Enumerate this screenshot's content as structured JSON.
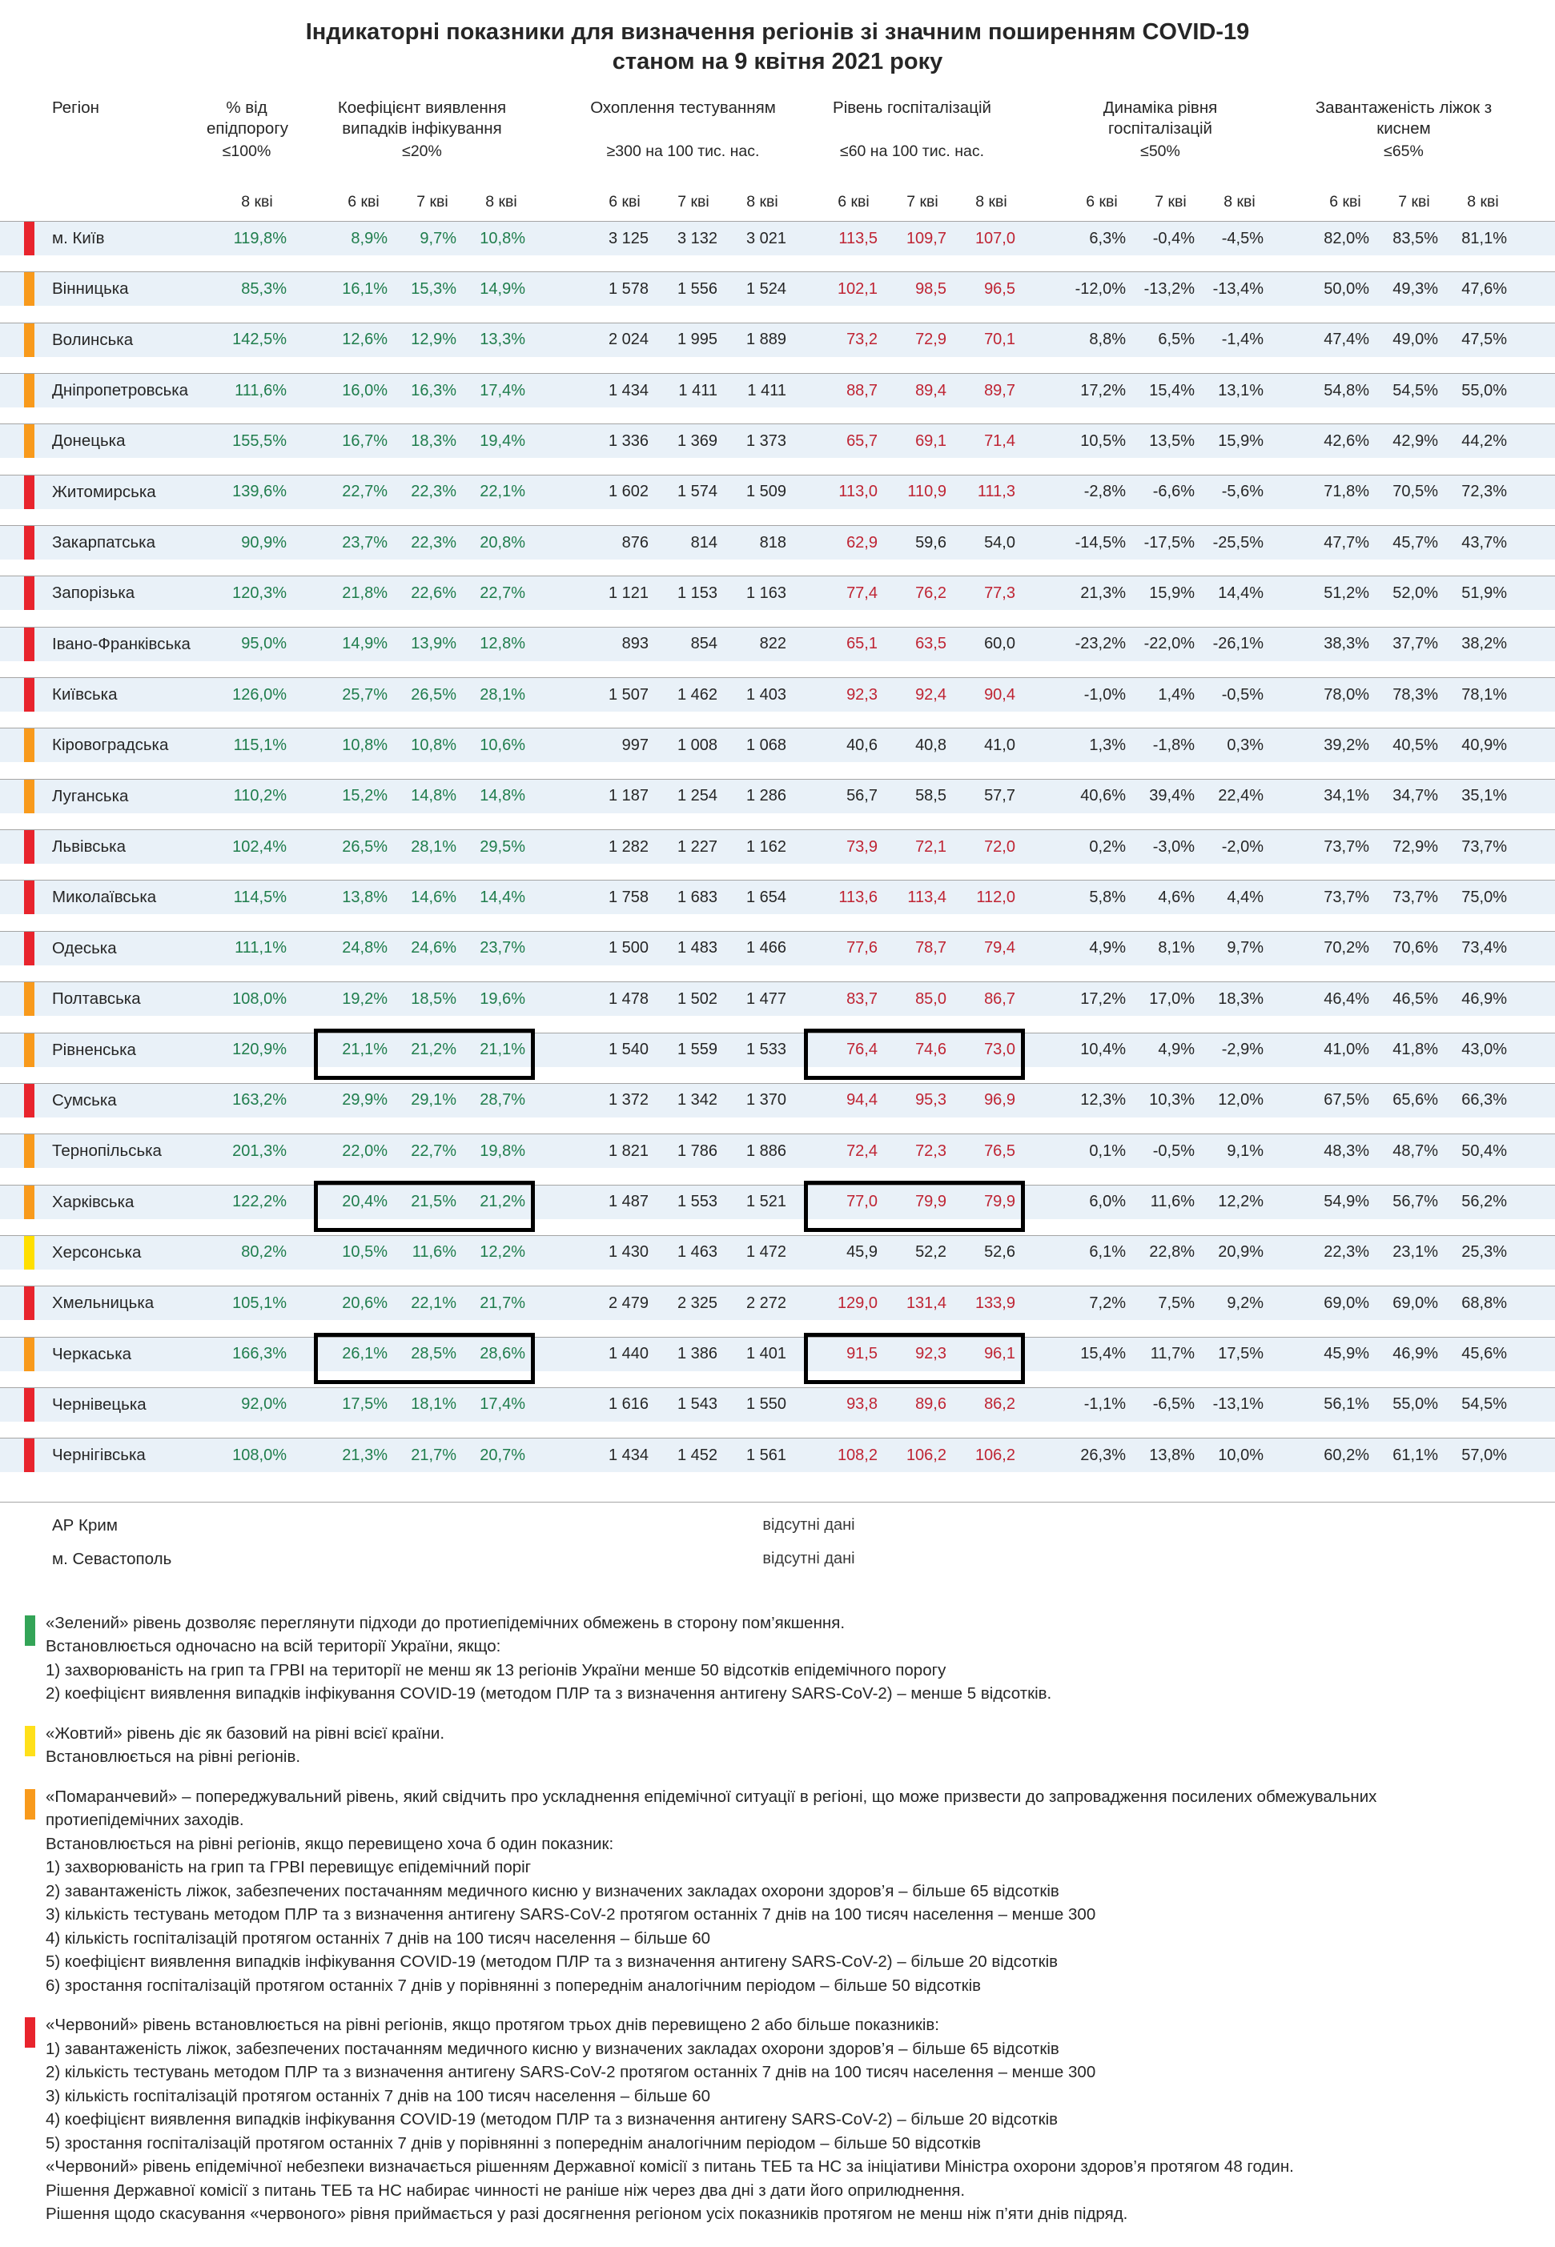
{
  "title": {
    "line1": "Індикаторні показники для визначення регіонів зі значним поширенням COVID-19",
    "line2": "станом на 9 квітня 2021 року"
  },
  "columns": {
    "region": "Регіон",
    "groups": [
      {
        "key": "epid",
        "label": "% від епідпорогу",
        "threshold": "≤100%",
        "dates": [
          "8 кві"
        ]
      },
      {
        "key": "coef",
        "label": "Коефіцієнт виявлення випадків інфікування",
        "threshold": "≤20%",
        "dates": [
          "6 кві",
          "7 кві",
          "8 кві"
        ]
      },
      {
        "key": "test",
        "label": "Охоплення тестуванням",
        "threshold": "≥300 на 100 тис. нас.",
        "dates": [
          "6 кві",
          "7 кві",
          "8 кві"
        ]
      },
      {
        "key": "hosp",
        "label": "Рівень госпіталізацій",
        "threshold": "≤60 на 100 тис. нас.",
        "dates": [
          "6 кві",
          "7 кві",
          "8 кві"
        ]
      },
      {
        "key": "dyn",
        "label": "Динаміка рівня госпіталізацій",
        "threshold": "≤50%",
        "dates": [
          "6 кві",
          "7 кві",
          "8 кві"
        ]
      },
      {
        "key": "beds",
        "label": "Завантаженість ліжок з киснем",
        "threshold": "≤65%",
        "dates": [
          "6 кві",
          "7 кві",
          "8 кві"
        ]
      }
    ]
  },
  "rows": [
    {
      "level": "red",
      "region": "м. Київ",
      "epid": "119,8%",
      "coef": [
        "8,9%",
        "9,7%",
        "10,8%"
      ],
      "test": [
        "3 125",
        "3 132",
        "3 021"
      ],
      "hosp": [
        "113,5",
        "109,7",
        "107,0"
      ],
      "dyn": [
        "6,3%",
        "-0,4%",
        "-4,5%"
      ],
      "beds": [
        "82,0%",
        "83,5%",
        "81,1%"
      ],
      "boxed": false
    },
    {
      "level": "orange",
      "region": "Вінницька",
      "epid": "85,3%",
      "coef": [
        "16,1%",
        "15,3%",
        "14,9%"
      ],
      "test": [
        "1 578",
        "1 556",
        "1 524"
      ],
      "hosp": [
        "102,1",
        "98,5",
        "96,5"
      ],
      "dyn": [
        "-12,0%",
        "-13,2%",
        "-13,4%"
      ],
      "beds": [
        "50,0%",
        "49,3%",
        "47,6%"
      ],
      "boxed": false
    },
    {
      "level": "orange",
      "region": "Волинська",
      "epid": "142,5%",
      "coef": [
        "12,6%",
        "12,9%",
        "13,3%"
      ],
      "test": [
        "2 024",
        "1 995",
        "1 889"
      ],
      "hosp": [
        "73,2",
        "72,9",
        "70,1"
      ],
      "dyn": [
        "8,8%",
        "6,5%",
        "-1,4%"
      ],
      "beds": [
        "47,4%",
        "49,0%",
        "47,5%"
      ],
      "boxed": false
    },
    {
      "level": "orange",
      "region": "Дніпропетровська",
      "epid": "111,6%",
      "coef": [
        "16,0%",
        "16,3%",
        "17,4%"
      ],
      "test": [
        "1 434",
        "1 411",
        "1 411"
      ],
      "hosp": [
        "88,7",
        "89,4",
        "89,7"
      ],
      "dyn": [
        "17,2%",
        "15,4%",
        "13,1%"
      ],
      "beds": [
        "54,8%",
        "54,5%",
        "55,0%"
      ],
      "boxed": false
    },
    {
      "level": "orange",
      "region": "Донецька",
      "epid": "155,5%",
      "coef": [
        "16,7%",
        "18,3%",
        "19,4%"
      ],
      "test": [
        "1 336",
        "1 369",
        "1 373"
      ],
      "hosp": [
        "65,7",
        "69,1",
        "71,4"
      ],
      "dyn": [
        "10,5%",
        "13,5%",
        "15,9%"
      ],
      "beds": [
        "42,6%",
        "42,9%",
        "44,2%"
      ],
      "boxed": false
    },
    {
      "level": "red",
      "region": "Житомирська",
      "epid": "139,6%",
      "coef": [
        "22,7%",
        "22,3%",
        "22,1%"
      ],
      "test": [
        "1 602",
        "1 574",
        "1 509"
      ],
      "hosp": [
        "113,0",
        "110,9",
        "111,3"
      ],
      "dyn": [
        "-2,8%",
        "-6,6%",
        "-5,6%"
      ],
      "beds": [
        "71,8%",
        "70,5%",
        "72,3%"
      ],
      "boxed": false
    },
    {
      "level": "red",
      "region": "Закарпатська",
      "epid": "90,9%",
      "coef": [
        "23,7%",
        "22,3%",
        "20,8%"
      ],
      "test": [
        "876",
        "814",
        "818"
      ],
      "hosp": [
        "62,9",
        "59,6",
        "54,0"
      ],
      "dyn": [
        "-14,5%",
        "-17,5%",
        "-25,5%"
      ],
      "beds": [
        "47,7%",
        "45,7%",
        "43,7%"
      ],
      "boxed": false
    },
    {
      "level": "red",
      "region": "Запорізька",
      "epid": "120,3%",
      "coef": [
        "21,8%",
        "22,6%",
        "22,7%"
      ],
      "test": [
        "1 121",
        "1 153",
        "1 163"
      ],
      "hosp": [
        "77,4",
        "76,2",
        "77,3"
      ],
      "dyn": [
        "21,3%",
        "15,9%",
        "14,4%"
      ],
      "beds": [
        "51,2%",
        "52,0%",
        "51,9%"
      ],
      "boxed": false
    },
    {
      "level": "red",
      "region": "Івано-Франківська",
      "epid": "95,0%",
      "coef": [
        "14,9%",
        "13,9%",
        "12,8%"
      ],
      "test": [
        "893",
        "854",
        "822"
      ],
      "hosp": [
        "65,1",
        "63,5",
        "60,0"
      ],
      "dyn": [
        "-23,2%",
        "-22,0%",
        "-26,1%"
      ],
      "beds": [
        "38,3%",
        "37,7%",
        "38,2%"
      ],
      "boxed": false
    },
    {
      "level": "red",
      "region": "Київська",
      "epid": "126,0%",
      "coef": [
        "25,7%",
        "26,5%",
        "28,1%"
      ],
      "test": [
        "1 507",
        "1 462",
        "1 403"
      ],
      "hosp": [
        "92,3",
        "92,4",
        "90,4"
      ],
      "dyn": [
        "-1,0%",
        "1,4%",
        "-0,5%"
      ],
      "beds": [
        "78,0%",
        "78,3%",
        "78,1%"
      ],
      "boxed": false
    },
    {
      "level": "orange",
      "region": "Кіровоградська",
      "epid": "115,1%",
      "coef": [
        "10,8%",
        "10,8%",
        "10,6%"
      ],
      "test": [
        "997",
        "1 008",
        "1 068"
      ],
      "hosp": [
        "40,6",
        "40,8",
        "41,0"
      ],
      "dyn": [
        "1,3%",
        "-1,8%",
        "0,3%"
      ],
      "beds": [
        "39,2%",
        "40,5%",
        "40,9%"
      ],
      "boxed": false
    },
    {
      "level": "orange",
      "region": "Луганська",
      "epid": "110,2%",
      "coef": [
        "15,2%",
        "14,8%",
        "14,8%"
      ],
      "test": [
        "1 187",
        "1 254",
        "1 286"
      ],
      "hosp": [
        "56,7",
        "58,5",
        "57,7"
      ],
      "dyn": [
        "40,6%",
        "39,4%",
        "22,4%"
      ],
      "beds": [
        "34,1%",
        "34,7%",
        "35,1%"
      ],
      "boxed": false
    },
    {
      "level": "red",
      "region": "Львівська",
      "epid": "102,4%",
      "coef": [
        "26,5%",
        "28,1%",
        "29,5%"
      ],
      "test": [
        "1 282",
        "1 227",
        "1 162"
      ],
      "hosp": [
        "73,9",
        "72,1",
        "72,0"
      ],
      "dyn": [
        "0,2%",
        "-3,0%",
        "-2,0%"
      ],
      "beds": [
        "73,7%",
        "72,9%",
        "73,7%"
      ],
      "boxed": false
    },
    {
      "level": "red",
      "region": "Миколаївська",
      "epid": "114,5%",
      "coef": [
        "13,8%",
        "14,6%",
        "14,4%"
      ],
      "test": [
        "1 758",
        "1 683",
        "1 654"
      ],
      "hosp": [
        "113,6",
        "113,4",
        "112,0"
      ],
      "dyn": [
        "5,8%",
        "4,6%",
        "4,4%"
      ],
      "beds": [
        "73,7%",
        "73,7%",
        "75,0%"
      ],
      "boxed": false
    },
    {
      "level": "red",
      "region": "Одеська",
      "epid": "111,1%",
      "coef": [
        "24,8%",
        "24,6%",
        "23,7%"
      ],
      "test": [
        "1 500",
        "1 483",
        "1 466"
      ],
      "hosp": [
        "77,6",
        "78,7",
        "79,4"
      ],
      "dyn": [
        "4,9%",
        "8,1%",
        "9,7%"
      ],
      "beds": [
        "70,2%",
        "70,6%",
        "73,4%"
      ],
      "boxed": false
    },
    {
      "level": "orange",
      "region": "Полтавська",
      "epid": "108,0%",
      "coef": [
        "19,2%",
        "18,5%",
        "19,6%"
      ],
      "test": [
        "1 478",
        "1 502",
        "1 477"
      ],
      "hosp": [
        "83,7",
        "85,0",
        "86,7"
      ],
      "dyn": [
        "17,2%",
        "17,0%",
        "18,3%"
      ],
      "beds": [
        "46,4%",
        "46,5%",
        "46,9%"
      ],
      "boxed": false
    },
    {
      "level": "orange",
      "region": "Рівненська",
      "epid": "120,9%",
      "coef": [
        "21,1%",
        "21,2%",
        "21,1%"
      ],
      "test": [
        "1 540",
        "1 559",
        "1 533"
      ],
      "hosp": [
        "76,4",
        "74,6",
        "73,0"
      ],
      "dyn": [
        "10,4%",
        "4,9%",
        "-2,9%"
      ],
      "beds": [
        "41,0%",
        "41,8%",
        "43,0%"
      ],
      "boxed": true
    },
    {
      "level": "red",
      "region": "Сумська",
      "epid": "163,2%",
      "coef": [
        "29,9%",
        "29,1%",
        "28,7%"
      ],
      "test": [
        "1 372",
        "1 342",
        "1 370"
      ],
      "hosp": [
        "94,4",
        "95,3",
        "96,9"
      ],
      "dyn": [
        "12,3%",
        "10,3%",
        "12,0%"
      ],
      "beds": [
        "67,5%",
        "65,6%",
        "66,3%"
      ],
      "boxed": false
    },
    {
      "level": "orange",
      "region": "Тернопільська",
      "epid": "201,3%",
      "coef": [
        "22,0%",
        "22,7%",
        "19,8%"
      ],
      "test": [
        "1 821",
        "1 786",
        "1 886"
      ],
      "hosp": [
        "72,4",
        "72,3",
        "76,5"
      ],
      "dyn": [
        "0,1%",
        "-0,5%",
        "9,1%"
      ],
      "beds": [
        "48,3%",
        "48,7%",
        "50,4%"
      ],
      "boxed": false
    },
    {
      "level": "orange",
      "region": "Харківська",
      "epid": "122,2%",
      "coef": [
        "20,4%",
        "21,5%",
        "21,2%"
      ],
      "test": [
        "1 487",
        "1 553",
        "1 521"
      ],
      "hosp": [
        "77,0",
        "79,9",
        "79,9"
      ],
      "dyn": [
        "6,0%",
        "11,6%",
        "12,2%"
      ],
      "beds": [
        "54,9%",
        "56,7%",
        "56,2%"
      ],
      "boxed": true
    },
    {
      "level": "yellow",
      "region": "Херсонська",
      "epid": "80,2%",
      "coef": [
        "10,5%",
        "11,6%",
        "12,2%"
      ],
      "test": [
        "1 430",
        "1 463",
        "1 472"
      ],
      "hosp": [
        "45,9",
        "52,2",
        "52,6"
      ],
      "dyn": [
        "6,1%",
        "22,8%",
        "20,9%"
      ],
      "beds": [
        "22,3%",
        "23,1%",
        "25,3%"
      ],
      "boxed": false
    },
    {
      "level": "red",
      "region": "Хмельницька",
      "epid": "105,1%",
      "coef": [
        "20,6%",
        "22,1%",
        "21,7%"
      ],
      "test": [
        "2 479",
        "2 325",
        "2 272"
      ],
      "hosp": [
        "129,0",
        "131,4",
        "133,9"
      ],
      "dyn": [
        "7,2%",
        "7,5%",
        "9,2%"
      ],
      "beds": [
        "69,0%",
        "69,0%",
        "68,8%"
      ],
      "boxed": false
    },
    {
      "level": "orange",
      "region": "Черкаська",
      "epid": "166,3%",
      "coef": [
        "26,1%",
        "28,5%",
        "28,6%"
      ],
      "test": [
        "1 440",
        "1 386",
        "1 401"
      ],
      "hosp": [
        "91,5",
        "92,3",
        "96,1"
      ],
      "dyn": [
        "15,4%",
        "11,7%",
        "17,5%"
      ],
      "beds": [
        "45,9%",
        "46,9%",
        "45,6%"
      ],
      "boxed": true
    },
    {
      "level": "red",
      "region": "Чернівецька",
      "epid": "92,0%",
      "coef": [
        "17,5%",
        "18,1%",
        "17,4%"
      ],
      "test": [
        "1 616",
        "1 543",
        "1 550"
      ],
      "hosp": [
        "93,8",
        "89,6",
        "86,2"
      ],
      "dyn": [
        "-1,1%",
        "-6,5%",
        "-13,1%"
      ],
      "beds": [
        "56,1%",
        "55,0%",
        "54,5%"
      ],
      "boxed": false
    },
    {
      "level": "red",
      "region": "Чернігівська",
      "epid": "108,0%",
      "coef": [
        "21,3%",
        "21,7%",
        "20,7%"
      ],
      "test": [
        "1 434",
        "1 452",
        "1 561"
      ],
      "hosp": [
        "108,2",
        "106,2",
        "106,2"
      ],
      "dyn": [
        "26,3%",
        "13,8%",
        "10,0%"
      ],
      "beds": [
        "60,2%",
        "61,1%",
        "57,0%"
      ],
      "boxed": false
    }
  ],
  "no_data_rows": [
    {
      "region": "АР Крим",
      "note": "відсутні дані"
    },
    {
      "region": "м. Севастополь",
      "note": "відсутні дані"
    }
  ],
  "legend": [
    {
      "color": "green",
      "lines": [
        "«Зелений» рівень дозволяє переглянути підходи до протиепідемічних обмежень в сторону пом’якшення.",
        "Встановлюється одночасно на всій території України, якщо:",
        "1) захворюваність на грип та ГРВІ на території не менш як 13 регіонів України менше 50 відсотків епідемічного порогу",
        "2) коефіцієнт виявлення випадків інфікування COVID-19 (методом ПЛР та з визначення антигену SARS-CoV-2) – менше 5 відсотків."
      ]
    },
    {
      "color": "yellow",
      "lines": [
        "«Жовтий» рівень діє як базовий на рівні всієї країни.",
        "Встановлюється на рівні регіонів."
      ]
    },
    {
      "color": "orange",
      "lines": [
        "«Помаранчевий» – попереджувальний рівень, який свідчить про ускладнення епідемічної ситуації в регіоні, що може призвести до запровадження посилених обмежувальних протиепідемічних заходів.",
        "Встановлюється на рівні регіонів, якщо перевищено хоча б один показник:",
        "1) захворюваність на грип та ГРВІ перевищує епідемічний поріг",
        "2) завантаженість ліжок, забезпечених постачанням медичного кисню у визначених закладах охорони здоров’я – більше 65 відсотків",
        "3) кількість тестувань методом ПЛР та з визначення антигену SARS-CoV-2 протягом останніх 7 днів на 100 тисяч населення – менше 300",
        "4) кількість госпіталізацій протягом останніх 7 днів на 100 тисяч населення – більше 60",
        "5) коефіцієнт виявлення випадків інфікування COVID-19 (методом ПЛР та з визначення антигену SARS-CoV-2) – більше 20 відсотків",
        "6) зростання госпіталізацій протягом останніх 7 днів у порівнянні з попереднім аналогічним періодом – більше 50 відсотків"
      ]
    },
    {
      "color": "red",
      "lines": [
        "«Червоний» рівень встановлюється на рівні регіонів, якщо протягом трьох днів перевищено 2 або більше показників:",
        "1) завантаженість ліжок, забезпечених постачанням медичного кисню у визначених закладах охорони здоров’я – більше 65 відсотків",
        "2) кількість тестувань методом ПЛР та з визначення антигену SARS-CoV-2 протягом останніх 7 днів на 100 тисяч населення – менше 300",
        "3) кількість госпіталізацій протягом останніх 7 днів на 100 тисяч населення – більше 60",
        "4) коефіцієнт виявлення випадків інфікування COVID-19 (методом ПЛР та з визначення антигену SARS-CoV-2) – більше 20 відсотків",
        "5) зростання госпіталізацій протягом останніх 7 днів у порівнянні з попереднім аналогічним періодом – більше 50 відсотків",
        "«Червоний» рівень епідемічної небезпеки визначається рішенням Державної комісії з питань ТЕБ та НС за ініціативи Міністра охорони здоров’я протягом 48 годин.",
        "Рішення Державної комісії з питань ТЕБ та НС набирає чинності не раніше ніж через два дні з дати його оприлюднення.",
        "Рішення щодо скасування «червоного» рівня приймається у разі досягнення регіоном усіх показників протягом не менш ніж п’яти днів підряд."
      ]
    }
  ],
  "colors": {
    "red_marker": "#e8242d",
    "orange_marker": "#f89a1c",
    "yellow_marker": "#ffdf00",
    "green_marker": "#33a457",
    "green_text": "#1f7d4c",
    "red_text": "#bf2433",
    "row_stripe": "#e9f1f8"
  },
  "hosp_red_threshold": 60
}
